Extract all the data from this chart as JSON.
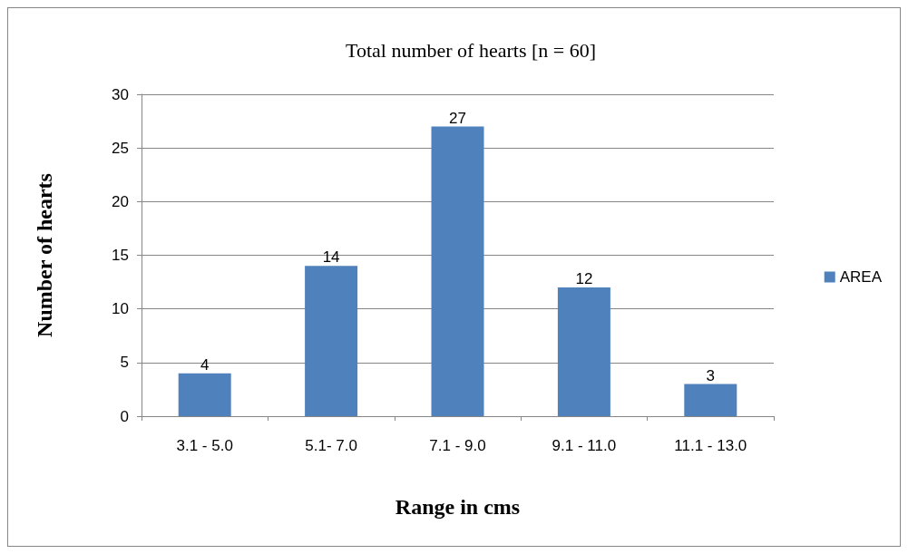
{
  "chart_data": {
    "type": "bar",
    "title": "Total number of hearts [n = 60]",
    "xlabel": "Range in cms",
    "ylabel": "Number of hearts",
    "categories": [
      "3.1 - 5.0",
      "5.1- 7.0",
      "7.1 - 9.0",
      "9.1 - 11.0",
      "11.1 - 13.0"
    ],
    "series": [
      {
        "name": "AREA",
        "color": "#4f81bd",
        "values": [
          4,
          14,
          27,
          12,
          3
        ]
      }
    ],
    "ylim": [
      0,
      30
    ],
    "yticks": [
      0,
      5,
      10,
      15,
      20,
      25,
      30
    ],
    "grid": "y",
    "legend": "right",
    "data_labels": true
  }
}
